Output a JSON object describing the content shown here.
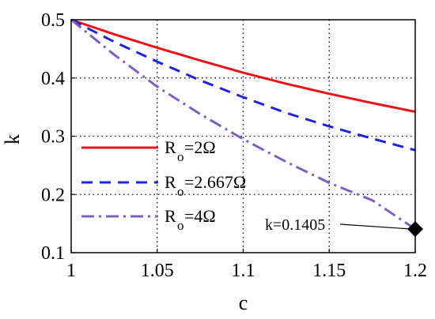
{
  "chart_data": {
    "type": "line",
    "xlabel": "c",
    "ylabel": "k",
    "xlim": [
      1,
      1.2
    ],
    "ylim": [
      0.1,
      0.5
    ],
    "xticks": [
      "1",
      "1.05",
      "1.1",
      "1.15",
      "1.2"
    ],
    "yticks": [
      "0.1",
      "0.2",
      "0.3",
      "0.4",
      "0.5"
    ],
    "grid": "dotted",
    "legend_placement": "left",
    "series": [
      {
        "name": "Ro=2Ω",
        "label_main": "R",
        "label_sub": "o",
        "label_rest": "=2Ω",
        "color": "#e8141b",
        "style": "solid",
        "x": [
          1,
          1.025,
          1.05,
          1.075,
          1.1,
          1.125,
          1.15,
          1.175,
          1.2
        ],
        "y": [
          0.5,
          0.475,
          0.452,
          0.43,
          0.409,
          0.39,
          0.373,
          0.357,
          0.342
        ]
      },
      {
        "name": "Ro=2.667Ω",
        "label_main": "R",
        "label_sub": "o",
        "label_rest": "=2.667Ω",
        "color": "#1c26d4",
        "style": "dashed",
        "x": [
          1,
          1.025,
          1.05,
          1.075,
          1.1,
          1.125,
          1.15,
          1.175,
          1.2
        ],
        "y": [
          0.5,
          0.462,
          0.428,
          0.396,
          0.367,
          0.34,
          0.317,
          0.296,
          0.276
        ]
      },
      {
        "name": "Ro=4Ω",
        "label_main": "R",
        "label_sub": "o",
        "label_rest": "=4Ω",
        "color": "#7e5fbf",
        "style": "dashdot",
        "x": [
          1,
          1.025,
          1.05,
          1.075,
          1.1,
          1.125,
          1.15,
          1.175,
          1.2
        ],
        "y": [
          0.5,
          0.44,
          0.385,
          0.338,
          0.295,
          0.256,
          0.22,
          0.19,
          0.1405
        ]
      }
    ],
    "annotation": {
      "text": "k=0.1405",
      "x": 1.2,
      "y": 0.1405,
      "marker": "diamond"
    }
  }
}
